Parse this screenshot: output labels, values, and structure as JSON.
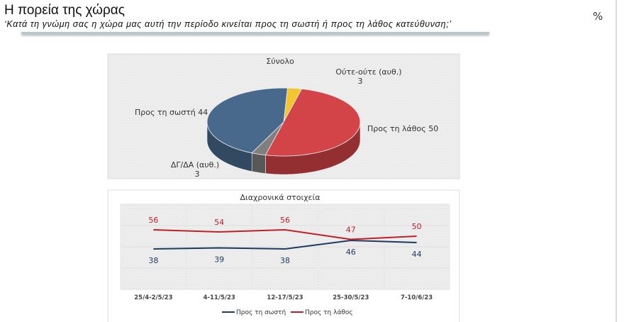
{
  "header": {
    "title": "Η πορεία της χώρας",
    "subtitle": "‘Κατά τη γνώμη σας η χώρα μας αυτή την περίοδο κινείται προς τη σωστή ή προς τη λάθος κατεύθυνση;’",
    "unit": "%"
  },
  "chart_data": [
    {
      "type": "pie",
      "title": "Σύνολο",
      "three_d": true,
      "slices": [
        {
          "label": "Ούτε-ούτε (αυθ.)",
          "value": 3,
          "color": "#f2c531"
        },
        {
          "label": "Προς τη λάθος",
          "value": 50,
          "color": "#d24447"
        },
        {
          "label": "ΔΓ/ΔΑ (αυθ.)",
          "value": 3,
          "color": "#7f7f7f"
        },
        {
          "label": "Προς τη σωστή",
          "value": 44,
          "color": "#48698c"
        }
      ]
    },
    {
      "type": "line",
      "title": "Διαχρονικά στοιχεία",
      "categories": [
        "25/4-2/5/23",
        "4-11/5/23",
        "12-17/5/23",
        "25-30/5/23",
        "7-10/6/23"
      ],
      "ylim": [
        0,
        80
      ],
      "grid": true,
      "legend": "bottom",
      "series": [
        {
          "name": "Προς τη σωστή",
          "values": [
            38,
            39,
            38,
            46,
            44
          ],
          "color": "#1f3b5e"
        },
        {
          "name": "Προς τη λάθος",
          "values": [
            56,
            54,
            56,
            47,
            50
          ],
          "color": "#c0202a"
        }
      ]
    }
  ]
}
